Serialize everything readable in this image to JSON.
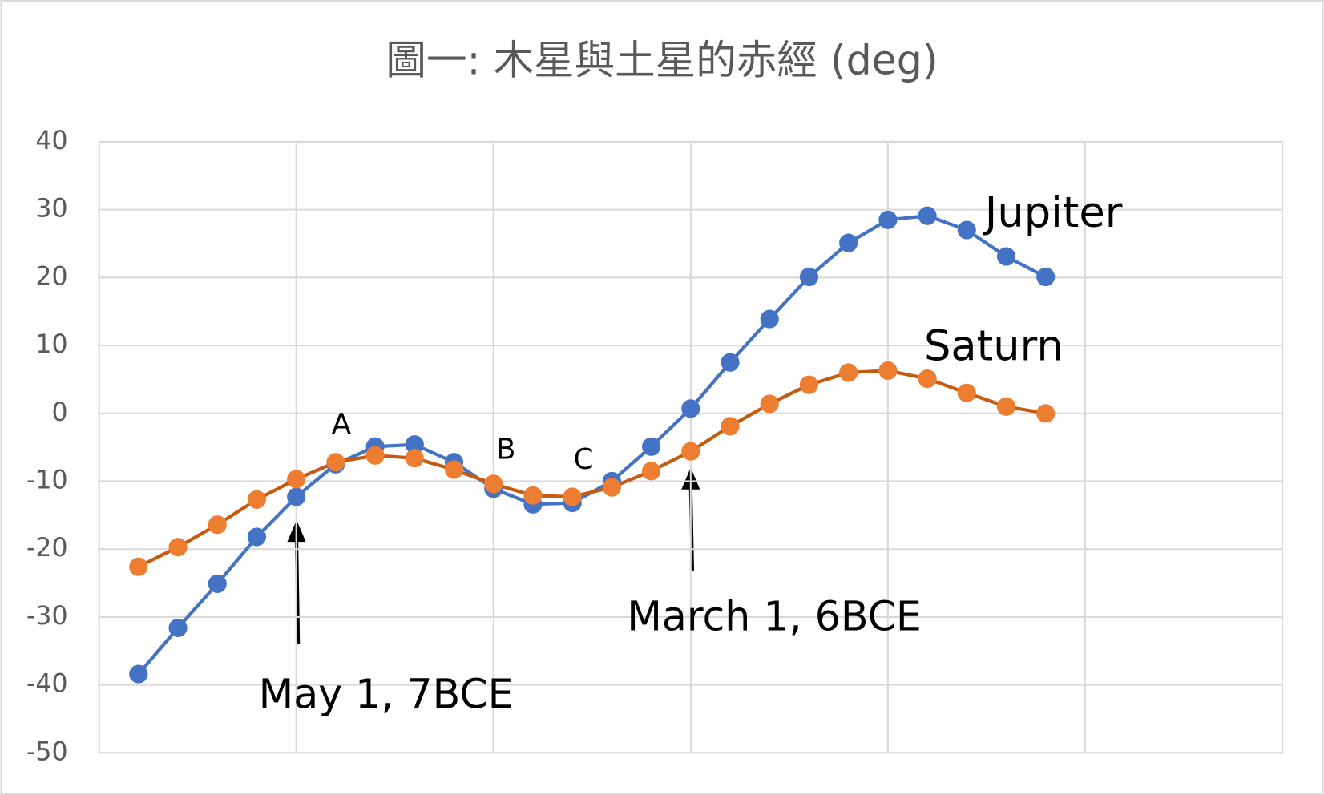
{
  "chart_data": {
    "type": "line",
    "title": "圖一: 木星與土星的赤經 (deg)",
    "x": [
      1,
      2,
      3,
      4,
      5,
      6,
      7,
      8,
      9,
      10,
      11,
      12,
      13,
      14,
      15,
      16,
      17,
      18,
      19,
      20,
      21,
      22,
      23,
      24
    ],
    "xlim": [
      0,
      30
    ],
    "xticks": [
      0,
      5,
      10,
      15,
      20,
      25,
      30
    ],
    "ylim": [
      -50,
      40
    ],
    "yticks": [
      -50,
      -40,
      -30,
      -20,
      -10,
      0,
      10,
      20,
      30,
      40
    ],
    "grid": true,
    "series": [
      {
        "name": "Jupiter",
        "color": "#4472c4",
        "line_color": "#4472c4",
        "values": [
          -38.4,
          -31.6,
          -25.1,
          -18.2,
          -12.3,
          -7.5,
          -4.9,
          -4.6,
          -7.2,
          -11.1,
          -13.4,
          -13.2,
          -10.0,
          -4.9,
          0.7,
          7.5,
          13.9,
          20.1,
          25.1,
          28.5,
          29.1,
          27.0,
          23.1,
          20.1
        ]
      },
      {
        "name": "Saturn",
        "color": "#ed7d31",
        "line_color": "#c55a11",
        "values": [
          -22.6,
          -19.7,
          -16.4,
          -12.7,
          -9.7,
          -7.2,
          -6.2,
          -6.6,
          -8.3,
          -10.4,
          -12.1,
          -12.3,
          -10.9,
          -8.5,
          -5.6,
          -1.9,
          1.4,
          4.2,
          6.0,
          6.3,
          5.1,
          3.0,
          1.0,
          0.0
        ]
      }
    ],
    "annotations": [
      "A",
      "B",
      "C",
      "May 1, 7BCE",
      "March 1, 6BCE"
    ]
  }
}
